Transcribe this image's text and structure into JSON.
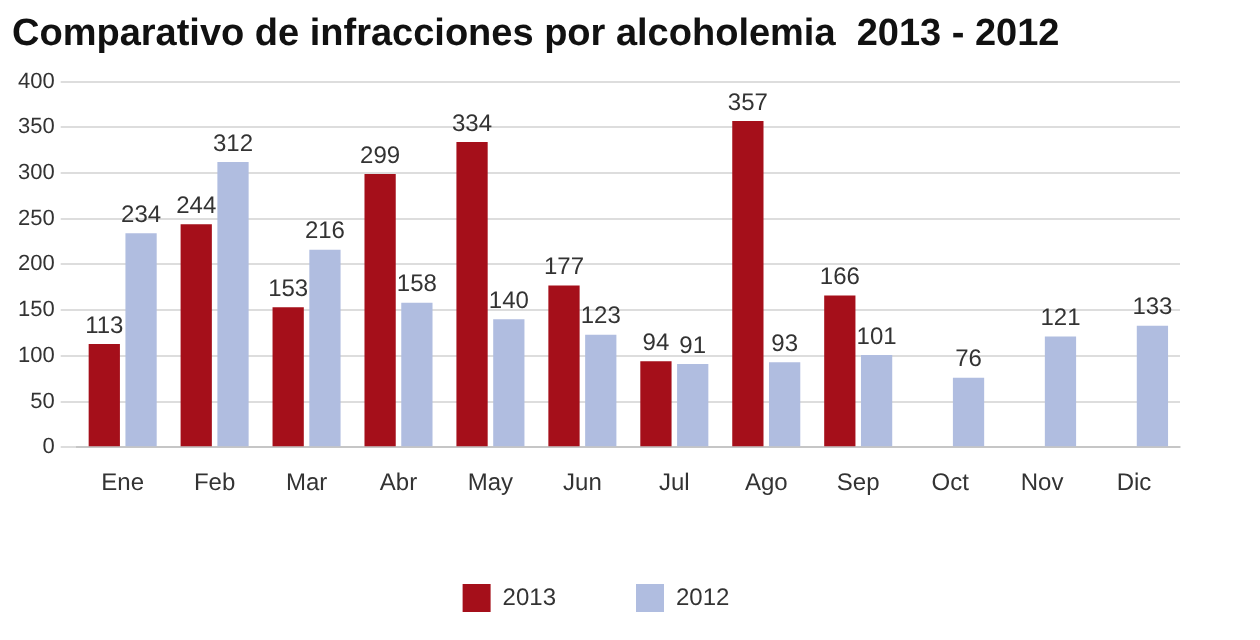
{
  "chart_data": {
    "type": "bar",
    "title": "Comparativo de infracciones por alcoholemia  2013 - 2012",
    "categories": [
      "Ene",
      "Feb",
      "Mar",
      "Abr",
      "May",
      "Jun",
      "Jul",
      "Ago",
      "Sep",
      "Oct",
      "Nov",
      "Dic"
    ],
    "series": [
      {
        "name": "2013",
        "color": "#a50f1a",
        "values": [
          113,
          244,
          153,
          299,
          334,
          177,
          94,
          357,
          166,
          null,
          null,
          null
        ]
      },
      {
        "name": "2012",
        "color": "#b0bde0",
        "values": [
          234,
          312,
          216,
          158,
          140,
          123,
          91,
          93,
          101,
          76,
          121,
          133
        ]
      }
    ],
    "ylim": [
      0,
      400
    ],
    "yticks": [
      0,
      50,
      100,
      150,
      200,
      250,
      300,
      350,
      400
    ],
    "grid": "y",
    "legend": "bottom",
    "data_labels": true
  }
}
